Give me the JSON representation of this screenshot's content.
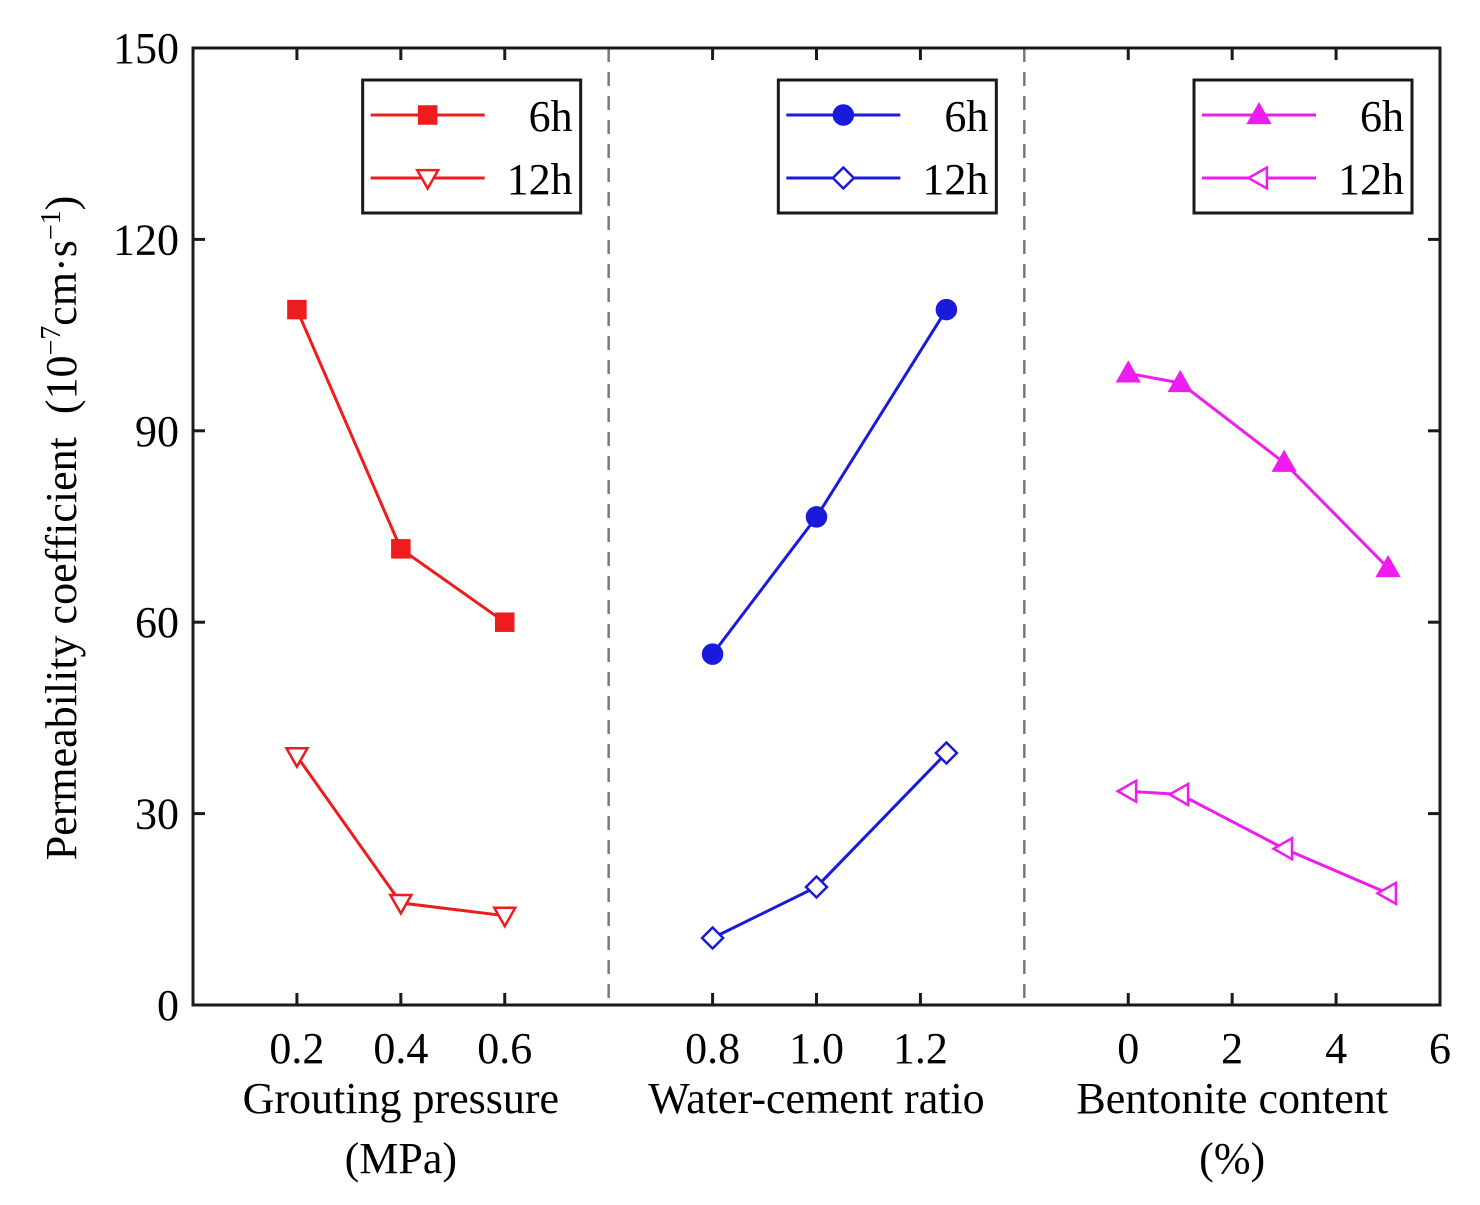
{
  "chart_data": {
    "type": "line",
    "ylabel": "Permeability coefficient",
    "ylabel_unit_open": "(10",
    "ylabel_unit_exp1": "−7",
    "ylabel_unit_mid": "cm·s",
    "ylabel_unit_exp2": "−1",
    "ylabel_unit_close": ")",
    "ylim": [
      0,
      150
    ],
    "yticks": [
      "0",
      "30",
      "60",
      "90",
      "120",
      "150"
    ],
    "panels": [
      {
        "xlabel_line1": "Grouting pressure",
        "xlabel_line2": "(MPa)",
        "xlim": [
          0,
          0.8
        ],
        "xticks": [
          0.2,
          0.4,
          0.6
        ],
        "xtick_labels": [
          "0.2",
          "0.4",
          "0.6"
        ],
        "color": "#ee1c1c",
        "series": [
          {
            "name": "6h",
            "marker": "square-filled",
            "x": [
              0.2,
              0.4,
              0.6
            ],
            "values": [
              109,
              71.5,
              60
            ]
          },
          {
            "name": "12h",
            "marker": "triangle-down-open",
            "x": [
              0.2,
              0.4,
              0.6
            ],
            "values": [
              39,
              16,
              14
            ]
          }
        ]
      },
      {
        "xlabel_line1": "Water-cement ratio",
        "xlabel_line2": "",
        "xlim": [
          0.6,
          1.4
        ],
        "xticks": [
          0.8,
          1.0,
          1.2
        ],
        "xtick_labels": [
          "0.8",
          "1.0",
          "1.2"
        ],
        "color": "#1a1adc",
        "series": [
          {
            "name": "6h",
            "marker": "circle-filled",
            "x": [
              0.8,
              1.0,
              1.25
            ],
            "values": [
              55,
              76.5,
              109
            ]
          },
          {
            "name": "12h",
            "marker": "diamond-open",
            "x": [
              0.8,
              1.0,
              1.25
            ],
            "values": [
              10.5,
              18.5,
              39.5
            ]
          }
        ]
      },
      {
        "xlabel_line1": "Bentonite content",
        "xlabel_line2": "(%)",
        "xlim": [
          -2,
          6
        ],
        "xticks": [
          0,
          2,
          4,
          6
        ],
        "xtick_labels": [
          "0",
          "2",
          "4",
          "6"
        ],
        "color": "#ee1cee",
        "series": [
          {
            "name": "6h",
            "marker": "triangle-up-filled",
            "x": [
              0,
              1,
              3,
              5
            ],
            "values": [
              99,
              97.5,
              85,
              68.5
            ]
          },
          {
            "name": "12h",
            "marker": "triangle-left-open",
            "x": [
              0,
              1,
              3,
              5
            ],
            "values": [
              33.5,
              33,
              24.5,
              17.5
            ]
          }
        ]
      }
    ]
  }
}
